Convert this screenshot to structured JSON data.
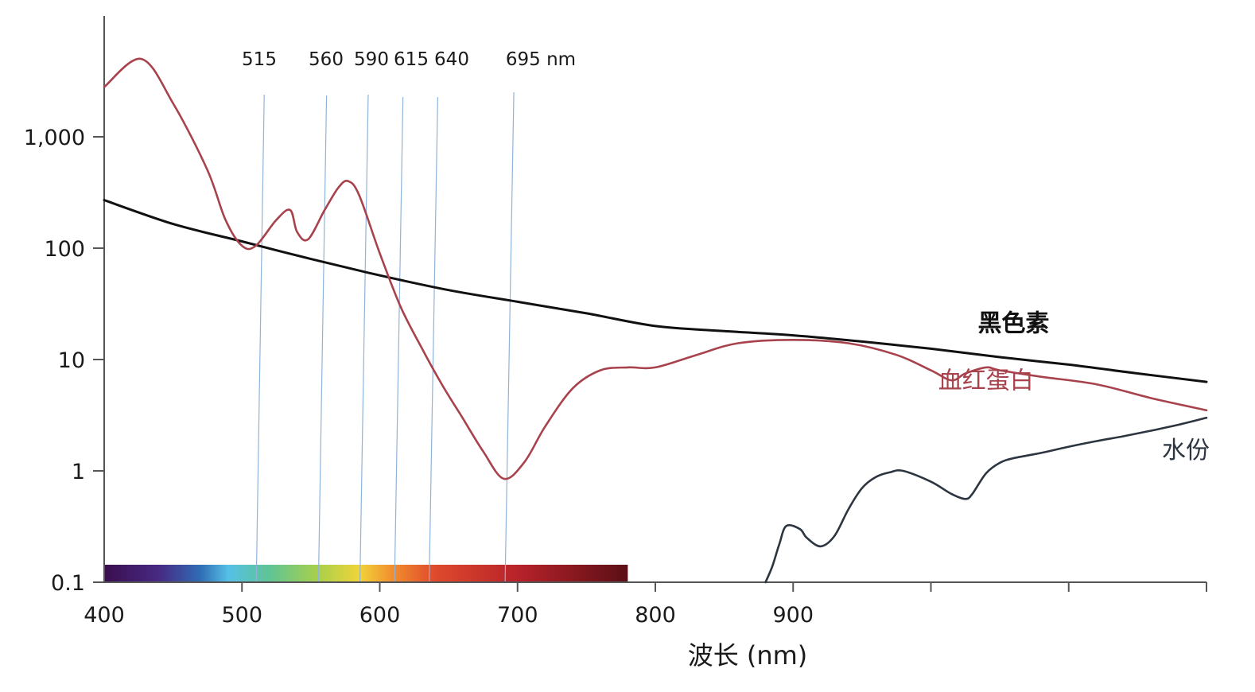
{
  "chart_data": {
    "type": "line",
    "title": "",
    "xlabel": "波长 (nm)",
    "ylabel": "",
    "x_scale": "linear",
    "y_scale": "log",
    "xlim": [
      400,
      1200
    ],
    "ylim": [
      0.1,
      10000
    ],
    "x_ticks": [
      400,
      500,
      600,
      700,
      800,
      900,
      1000,
      1100,
      1200
    ],
    "x_tick_labels": [
      "400",
      "500",
      "600",
      "700",
      "800",
      "900",
      "",
      "",
      ""
    ],
    "y_ticks": [
      0.1,
      1,
      10,
      100,
      1000
    ],
    "y_tick_labels": [
      "0.1",
      "1",
      "10",
      "100",
      "1,000"
    ],
    "grid": false,
    "legend": "none",
    "wavelength_markers": {
      "unit": "nm",
      "values": [
        515,
        560,
        590,
        615,
        640,
        695
      ],
      "labels": [
        "515",
        "560",
        "590",
        "615",
        "640",
        "695 nm"
      ],
      "color": "#8fb3d9"
    },
    "spectrum_bar": {
      "range": [
        400,
        780
      ],
      "stops": [
        {
          "nm": 400,
          "color": "#3a0e4e"
        },
        {
          "nm": 440,
          "color": "#472a83"
        },
        {
          "nm": 470,
          "color": "#2f6db5"
        },
        {
          "nm": 490,
          "color": "#56c0e6"
        },
        {
          "nm": 520,
          "color": "#5fc494"
        },
        {
          "nm": 555,
          "color": "#a8d04a"
        },
        {
          "nm": 585,
          "color": "#f0d43a"
        },
        {
          "nm": 610,
          "color": "#f28c2e"
        },
        {
          "nm": 640,
          "color": "#de4a2c"
        },
        {
          "nm": 700,
          "color": "#b8222a"
        },
        {
          "nm": 780,
          "color": "#5a0f16"
        }
      ]
    },
    "series": [
      {
        "name": "黑色素",
        "color": "#111111",
        "x": [
          400,
          450,
          500,
          550,
          600,
          650,
          700,
          750,
          800,
          850,
          900,
          950,
          1000,
          1050,
          1100,
          1150,
          1200
        ],
        "y": [
          270,
          165,
          115,
          80,
          57,
          42,
          33,
          26,
          20,
          18,
          16.5,
          14.5,
          12.5,
          10.5,
          9,
          7.5,
          6.3
        ]
      },
      {
        "name": "血红蛋白",
        "color": "#a8424c",
        "x": [
          400,
          427,
          450,
          475,
          488,
          500,
          510,
          525,
          535,
          540,
          548,
          560,
          570,
          577,
          585,
          600,
          615,
          630,
          645,
          660,
          675,
          690,
          705,
          720,
          740,
          760,
          780,
          800,
          830,
          860,
          900,
          940,
          975,
          1000,
          1015,
          1025,
          1040,
          1050,
          1080,
          1120,
          1160,
          1200
        ],
        "y": [
          2800,
          5000,
          2000,
          500,
          180,
          105,
          105,
          180,
          220,
          140,
          120,
          220,
          350,
          400,
          300,
          90,
          30,
          13,
          6,
          3,
          1.5,
          0.85,
          1.2,
          2.5,
          5.5,
          8,
          8.5,
          8.5,
          11,
          14,
          15,
          14,
          11,
          8,
          6.5,
          7.5,
          8.5,
          8,
          7,
          6,
          4.5,
          3.5
        ]
      },
      {
        "name": "水份",
        "color": "#2c3540",
        "x": [
          880,
          885,
          890,
          895,
          905,
          910,
          920,
          930,
          940,
          950,
          960,
          970,
          980,
          1000,
          1015,
          1025,
          1030,
          1040,
          1050,
          1060,
          1080,
          1100,
          1120,
          1140,
          1160,
          1180,
          1200
        ],
        "y": [
          0.1,
          0.14,
          0.22,
          0.32,
          0.3,
          0.25,
          0.21,
          0.26,
          0.45,
          0.7,
          0.88,
          0.97,
          1.0,
          0.8,
          0.62,
          0.56,
          0.62,
          0.95,
          1.18,
          1.3,
          1.45,
          1.65,
          1.85,
          2.05,
          2.3,
          2.6,
          3.0
        ]
      }
    ],
    "annotations": [
      {
        "text": "黑色素",
        "x": 1060,
        "y": 18
      },
      {
        "text": "血红蛋白",
        "x": 1040,
        "y": 5.5
      },
      {
        "text": "水份",
        "x": 1185,
        "y": 1.3
      }
    ]
  }
}
